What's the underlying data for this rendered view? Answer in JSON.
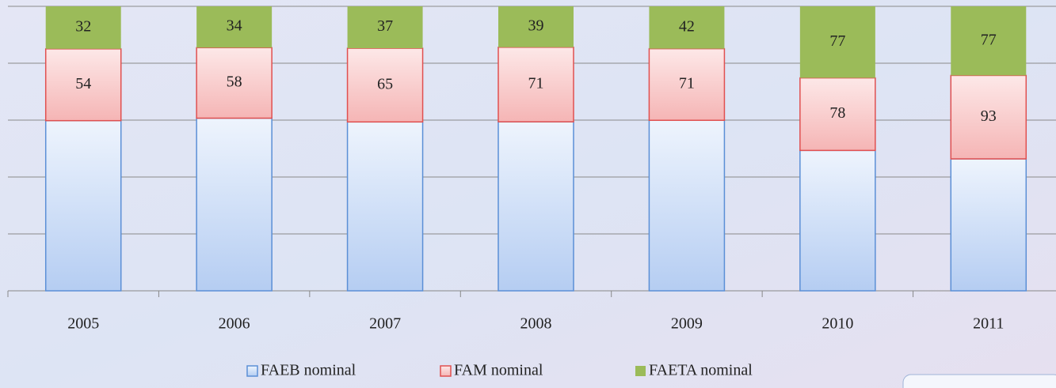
{
  "chart_data": {
    "type": "bar",
    "stacked": "percent",
    "categories": [
      "2005",
      "2006",
      "2007",
      "2008",
      "2009",
      "2010",
      "2011"
    ],
    "series": [
      {
        "name": "FAEB nominal",
        "color": "#5b8fd6",
        "values": [
          128,
          142,
          149,
          161,
          169,
          151,
          147
        ]
      },
      {
        "name": "FAM nominal",
        "color": "#e05050",
        "values": [
          54,
          58,
          65,
          71,
          71,
          78,
          93
        ]
      },
      {
        "name": "FAETA nominal",
        "color": "#9bbb59",
        "values": [
          32,
          34,
          37,
          39,
          42,
          77,
          77
        ]
      }
    ],
    "ylim": [
      0,
      100
    ],
    "yticks": [
      0,
      20,
      40,
      60,
      80,
      100
    ],
    "grid": true,
    "legend": "bottom"
  }
}
